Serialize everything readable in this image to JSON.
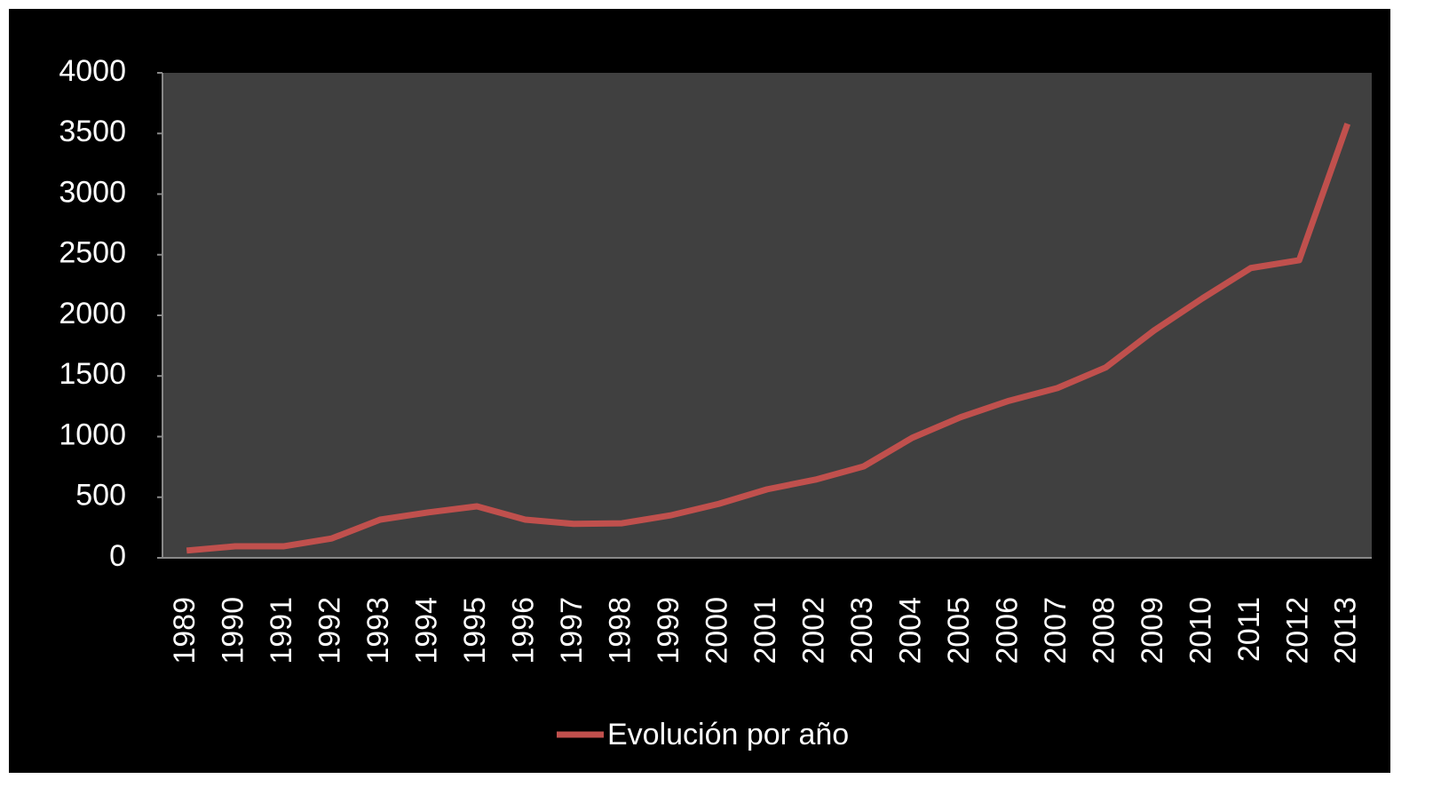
{
  "chart_data": {
    "type": "line",
    "categories": [
      "1989",
      "1990",
      "1991",
      "1992",
      "1993",
      "1994",
      "1995",
      "1996",
      "1997",
      "1998",
      "1999",
      "2000",
      "2001",
      "2002",
      "2003",
      "2004",
      "2005",
      "2006",
      "2007",
      "2008",
      "2009",
      "2010",
      "2011",
      "2012",
      "2013"
    ],
    "series": [
      {
        "name": "Evolución por año",
        "color": "#c0504d",
        "values": [
          60,
          95,
          95,
          160,
          315,
          375,
          425,
          315,
          280,
          285,
          350,
          445,
          565,
          645,
          755,
          990,
          1160,
          1295,
          1400,
          1570,
          1875,
          2140,
          2390,
          2455,
          3580
        ]
      }
    ],
    "ylim": [
      0,
      4000
    ],
    "yticks": [
      0,
      500,
      1000,
      1500,
      2000,
      2500,
      3000,
      3500,
      4000
    ],
    "legend": "bottom"
  }
}
